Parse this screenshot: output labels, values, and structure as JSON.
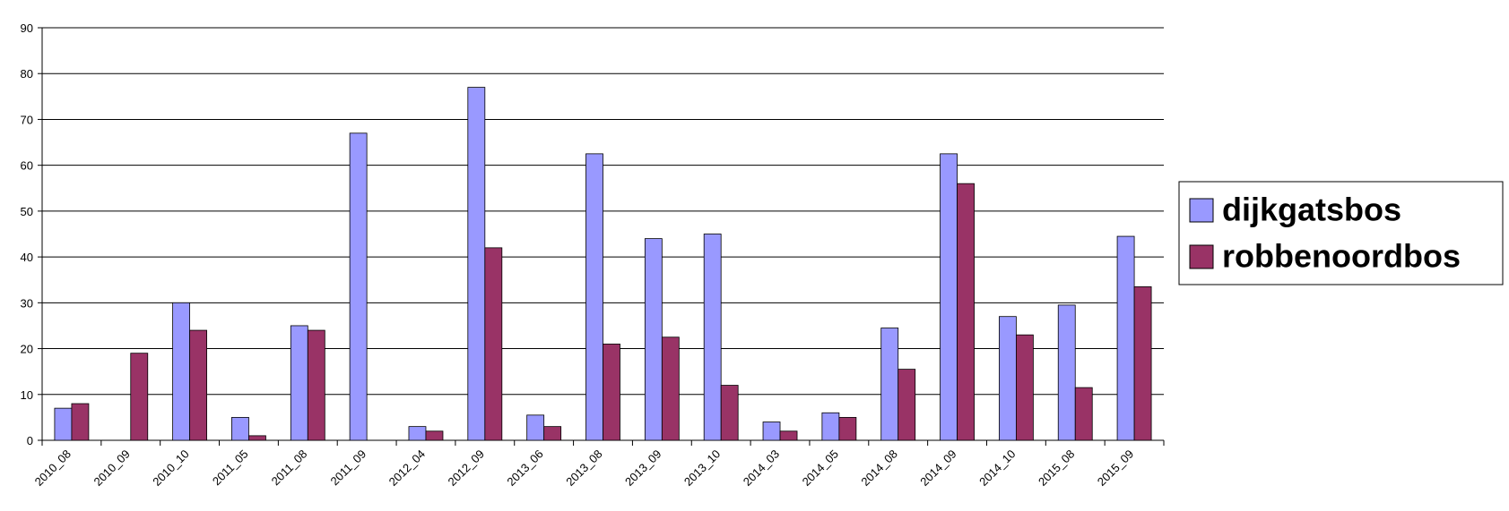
{
  "chart_data": {
    "type": "bar",
    "categories": [
      "2010_08",
      "2010_09",
      "2010_10",
      "2011_05",
      "2011_08",
      "2011_09",
      "2012_04",
      "2012_09",
      "2013_06",
      "2013_08",
      "2013_09",
      "2013_10",
      "2014_03",
      "2014_05",
      "2014_08",
      "2014_09",
      "2014_10",
      "2015_08",
      "2015_09"
    ],
    "series": [
      {
        "name": "dijkgatsbos",
        "color": "#9999ff",
        "values": [
          7,
          null,
          30,
          5,
          25,
          67,
          3,
          77,
          5.5,
          62.5,
          44,
          45,
          4,
          6,
          24.5,
          62.5,
          27,
          29.5,
          44.5
        ]
      },
      {
        "name": "robbenoordbos",
        "color": "#993366",
        "values": [
          8,
          19,
          24,
          1,
          24,
          null,
          2,
          42,
          3,
          21,
          22.5,
          12,
          2,
          5,
          15.5,
          56,
          23,
          11.5,
          33.5
        ]
      }
    ],
    "ylim": [
      0,
      90
    ],
    "yticks": [
      0,
      10,
      20,
      30,
      40,
      50,
      60,
      70,
      80,
      90
    ],
    "grid": true,
    "legend": "right"
  }
}
